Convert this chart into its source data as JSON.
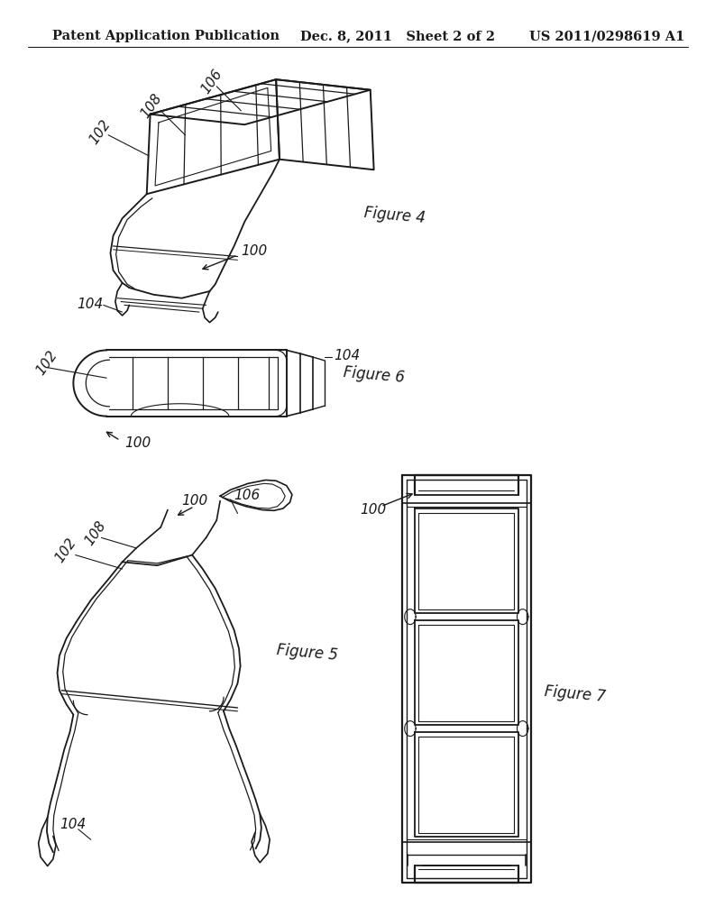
{
  "background_color": "#ffffff",
  "header_left": "Patent Application Publication",
  "header_mid": "Dec. 8, 2011   Sheet 2 of 2",
  "header_right": "US 2011/0298619 A1",
  "line_color": "#1a1a1a",
  "text_color": "#1a1a1a"
}
